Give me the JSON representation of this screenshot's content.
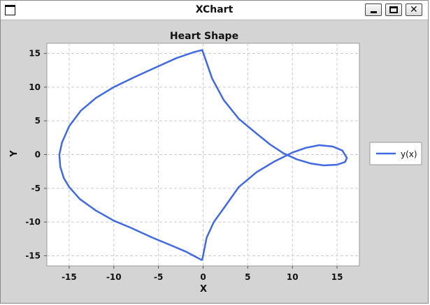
{
  "window": {
    "title": "XChart",
    "icons": {
      "system": "window-icon",
      "minimize": "minimize-icon",
      "maximize": "maximize-icon",
      "close": "close-icon"
    },
    "close_glyph": "✕"
  },
  "colors": {
    "background": "#d4d4d4",
    "plot_bg": "#ffffff",
    "series": "#4169e1",
    "grid": "#cccccc"
  },
  "chart_data": {
    "type": "line",
    "title": "Heart Shape",
    "xlabel": "X",
    "ylabel": "Y",
    "xlim": [
      -17.5,
      17.5
    ],
    "ylim": [
      -16.5,
      16.5
    ],
    "x_ticks": [
      -15,
      -10,
      -5,
      0,
      5,
      10,
      15
    ],
    "y_ticks": [
      -15,
      -10,
      -5,
      0,
      5,
      10,
      15
    ],
    "grid": true,
    "legend": {
      "position": "right",
      "entries": [
        "y(x)"
      ]
    },
    "series": [
      {
        "name": "y(x)",
        "x": [
          -0.1,
          -1,
          -3,
          -5,
          -7.5,
          -10,
          -12,
          -13.7,
          -15,
          -15.8,
          -16.1,
          -16,
          -15.6,
          -15,
          -13.8,
          -12,
          -10,
          -8,
          -5.7,
          -3.5,
          -1.9,
          -0.9,
          -0.2,
          -0.1,
          0.4,
          1.2,
          2.5,
          4,
          6,
          8,
          10,
          11.5,
          13,
          14.5,
          15.6,
          16.1,
          15.9,
          15,
          13.5,
          12,
          10.5,
          9,
          7.5,
          6,
          4,
          2.3,
          1,
          0.3,
          -0.1
        ],
        "y": [
          15.5,
          15.2,
          14.3,
          13.1,
          11.6,
          10,
          8.4,
          6.5,
          4.2,
          1.8,
          0,
          -1.8,
          -3.5,
          -4.8,
          -6.6,
          -8.3,
          -9.8,
          -10.9,
          -12.3,
          -13.5,
          -14.4,
          -15.1,
          -15.6,
          -15.6,
          -12.3,
          -10,
          -7.6,
          -4.8,
          -2.6,
          -1,
          0.3,
          1,
          1.4,
          1.2,
          0.6,
          -0.5,
          -1.1,
          -1.5,
          -1.6,
          -1.3,
          -0.7,
          0.2,
          1.5,
          3.1,
          5.3,
          8.1,
          11.3,
          14,
          15.5
        ]
      }
    ]
  }
}
